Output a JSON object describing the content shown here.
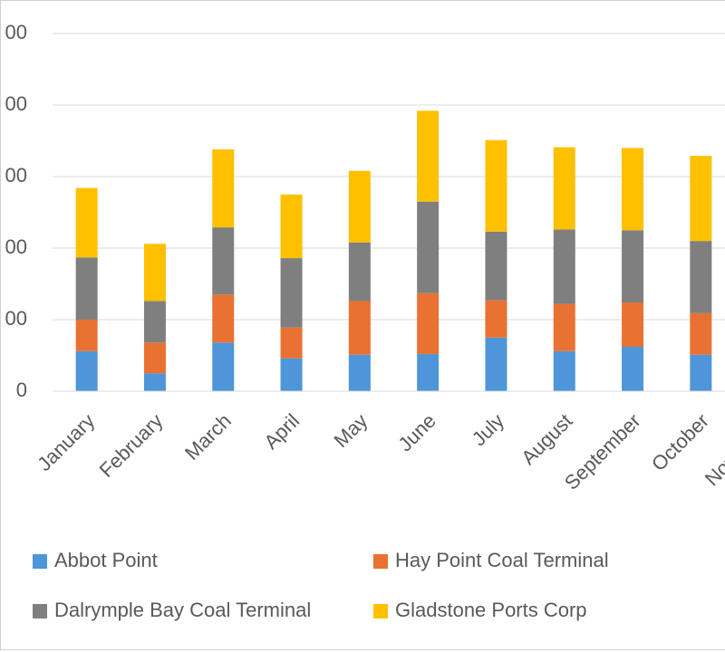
{
  "chart_data": {
    "type": "stacked_bar",
    "categories": [
      "January",
      "February",
      "March",
      "April",
      "May",
      "June",
      "July",
      "August",
      "September",
      "October",
      "November"
    ],
    "series": [
      {
        "name": "Abbot Point",
        "color": "#4e95d9",
        "values": [
          56,
          25,
          68,
          46,
          51,
          52,
          75,
          56,
          62,
          51,
          null
        ]
      },
      {
        "name": "Hay Point Coal Terminal",
        "color": "#e97132",
        "values": [
          44,
          43,
          67,
          43,
          75,
          85,
          52,
          66,
          62,
          58,
          null
        ]
      },
      {
        "name": "Dalrymple Bay Coal Terminal",
        "color": "#7f7f7f",
        "values": [
          87,
          58,
          94,
          97,
          82,
          128,
          96,
          104,
          101,
          101,
          null
        ]
      },
      {
        "name": "Gladstone Ports Corp",
        "color": "#ffc000",
        "values": [
          97,
          80,
          109,
          89,
          100,
          127,
          128,
          115,
          115,
          119,
          null
        ]
      }
    ],
    "ylim": [
      0,
      500
    ],
    "yticks": [
      0,
      {
        "value": 100,
        "label": "00"
      },
      {
        "value": 200,
        "label": "00"
      },
      {
        "value": 300,
        "label": "00"
      },
      {
        "value": 400,
        "label": "00"
      },
      {
        "value": 500,
        "label": "00"
      }
    ],
    "grid": true
  }
}
